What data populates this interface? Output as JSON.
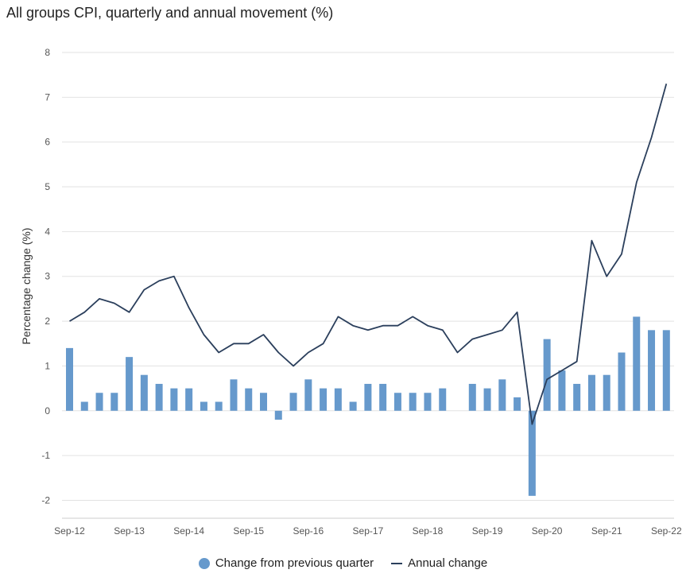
{
  "chart_data": {
    "type": "bar+line",
    "title": "All groups CPI, quarterly and annual movement (%)",
    "ylabel": "Percentage change (%)",
    "ylim": [
      -2.4,
      8
    ],
    "yticks": [
      -2,
      -1,
      0,
      1,
      2,
      3,
      4,
      5,
      6,
      7,
      8
    ],
    "x_tick_labels": [
      "Sep-12",
      "Sep-13",
      "Sep-14",
      "Sep-15",
      "Sep-16",
      "Sep-17",
      "Sep-18",
      "Sep-19",
      "Sep-20",
      "Sep-21",
      "Sep-22"
    ],
    "grid": true,
    "legend_position": "bottom",
    "quarters": [
      "Sep-12",
      "Dec-12",
      "Mar-13",
      "Jun-13",
      "Sep-13",
      "Dec-13",
      "Mar-14",
      "Jun-14",
      "Sep-14",
      "Dec-14",
      "Mar-15",
      "Jun-15",
      "Sep-15",
      "Dec-15",
      "Mar-16",
      "Jun-16",
      "Sep-16",
      "Dec-16",
      "Mar-17",
      "Jun-17",
      "Sep-17",
      "Dec-17",
      "Mar-18",
      "Jun-18",
      "Sep-18",
      "Dec-18",
      "Mar-19",
      "Jun-19",
      "Sep-19",
      "Dec-19",
      "Mar-20",
      "Jun-20",
      "Sep-20",
      "Dec-20",
      "Mar-21",
      "Jun-21",
      "Sep-21",
      "Dec-21",
      "Mar-22",
      "Jun-22",
      "Sep-22"
    ],
    "series": [
      {
        "name": "Change from previous quarter",
        "type": "bar",
        "color": "#6699cc",
        "values": [
          1.4,
          0.2,
          0.4,
          0.4,
          1.2,
          0.8,
          0.6,
          0.5,
          0.5,
          0.2,
          0.2,
          0.7,
          0.5,
          0.4,
          -0.2,
          0.4,
          0.7,
          0.5,
          0.5,
          0.2,
          0.6,
          0.6,
          0.4,
          0.4,
          0.4,
          0.5,
          0.0,
          0.6,
          0.5,
          0.7,
          0.3,
          -1.9,
          1.6,
          0.9,
          0.6,
          0.8,
          0.8,
          1.3,
          2.1,
          1.8,
          1.8
        ]
      },
      {
        "name": "Annual change",
        "type": "line",
        "color": "#2b3f5c",
        "values": [
          2.0,
          2.2,
          2.5,
          2.4,
          2.2,
          2.7,
          2.9,
          3.0,
          2.3,
          1.7,
          1.3,
          1.5,
          1.5,
          1.7,
          1.3,
          1.0,
          1.3,
          1.5,
          2.1,
          1.9,
          1.8,
          1.9,
          1.9,
          2.1,
          1.9,
          1.8,
          1.3,
          1.6,
          1.7,
          1.8,
          2.2,
          -0.3,
          0.7,
          0.9,
          1.1,
          3.8,
          3.0,
          3.5,
          5.1,
          6.1,
          7.3
        ]
      }
    ]
  }
}
